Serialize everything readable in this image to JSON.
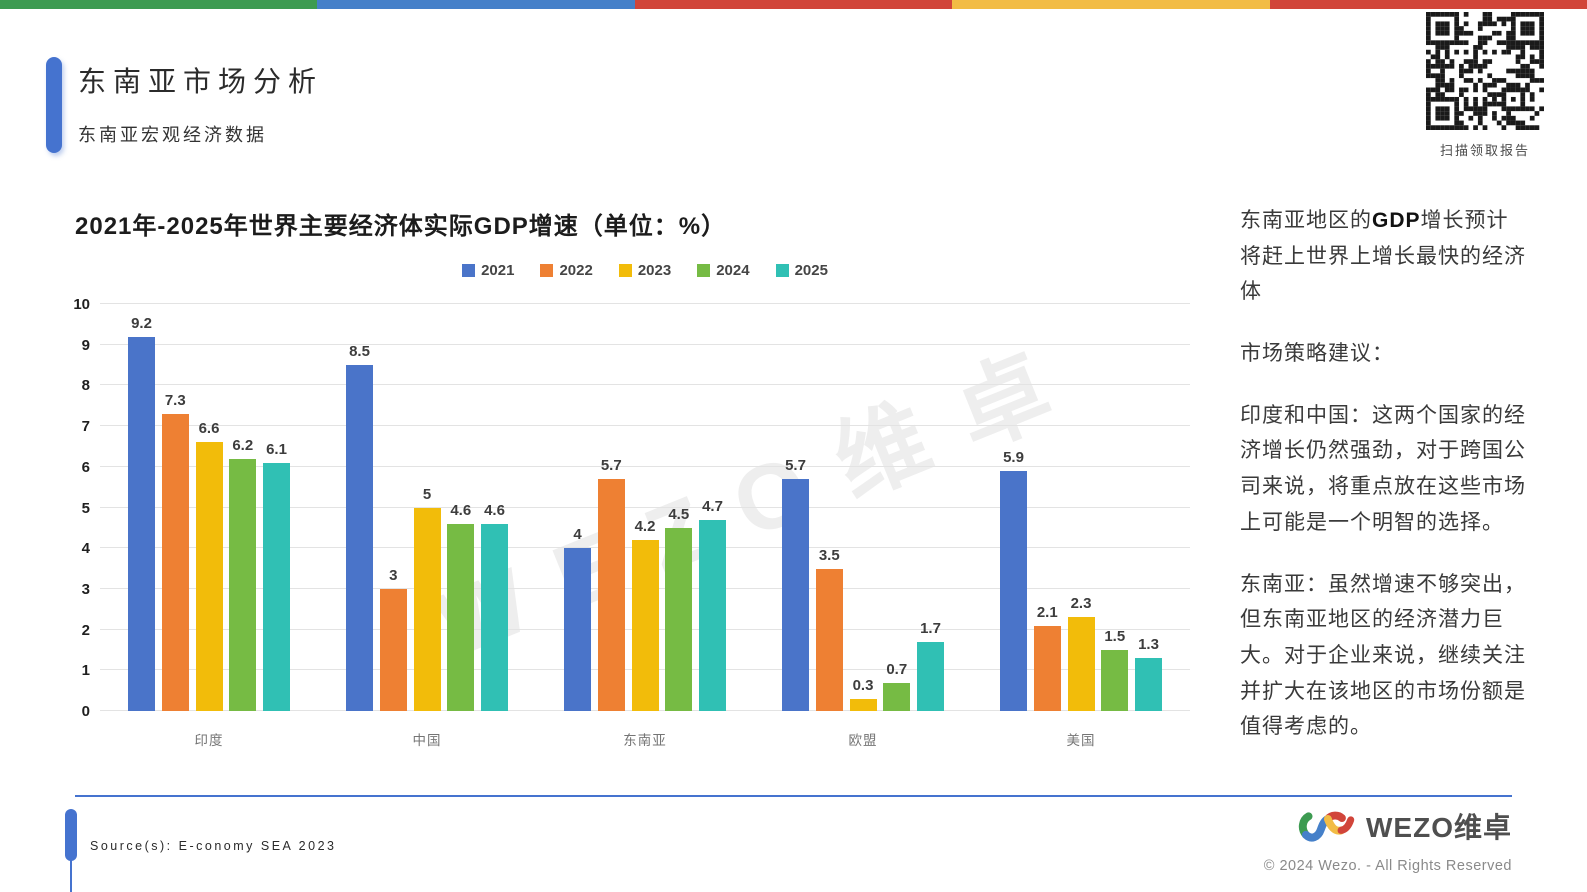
{
  "top_bar_colors": [
    "#3d9b51",
    "#4580c9",
    "#d1453a",
    "#f2bc45",
    "#d1453a"
  ],
  "header": {
    "title": "东南亚市场分析",
    "subtitle": "东南亚宏观经济数据"
  },
  "qr": {
    "caption": "扫描领取报告"
  },
  "chart": {
    "title": "2021年-2025年世界主要经济体实际GDP增速（单位：%）"
  },
  "watermark": "WEZO维卓",
  "chart_data": {
    "type": "bar",
    "title": "2021年-2025年世界主要经济体实际GDP增速（单位：%）",
    "categories": [
      "印度",
      "中国",
      "东南亚",
      "欧盟",
      "美国"
    ],
    "series": [
      {
        "name": "2021",
        "color": "#4a74c9",
        "values": [
          9.2,
          8.5,
          4,
          5.7,
          5.9
        ]
      },
      {
        "name": "2022",
        "color": "#ee8033",
        "values": [
          7.3,
          3,
          5.7,
          3.5,
          2.1
        ]
      },
      {
        "name": "2023",
        "color": "#f2bc0a",
        "values": [
          6.6,
          5,
          4.2,
          0.3,
          2.3
        ]
      },
      {
        "name": "2024",
        "color": "#76bb44",
        "values": [
          6.2,
          4.6,
          4.5,
          0.7,
          1.5
        ]
      },
      {
        "name": "2025",
        "color": "#30c0b4",
        "values": [
          6.1,
          4.6,
          4.7,
          1.7,
          1.3
        ]
      }
    ],
    "ylim": [
      0,
      10
    ],
    "yticks": [
      0,
      1,
      2,
      3,
      4,
      5,
      6,
      7,
      8,
      9,
      10
    ],
    "grid": true,
    "legend_position": "top"
  },
  "insights": {
    "p1_prefix": "东南亚地区的",
    "p1_bold": "GDP",
    "p1_suffix": "增长预计将赶上世界上增长最快的经济体",
    "p2": "市场策略建议：",
    "p3": "印度和中国：这两个国家的经济增长仍然强劲，对于跨国公司来说，将重点放在这些市场上可能是一个明智的选择。",
    "p4": "东南亚：虽然增速不够突出，但东南亚地区的经济潜力巨大。对于企业来说，继续关注并扩大在该地区的市场份额是值得考虑的。"
  },
  "footer": {
    "source": "Source(s): E-conomy SEA 2023",
    "brand": "WEZO维卓",
    "copyright": "© 2024 Wezo. - All Rights Reserved"
  }
}
